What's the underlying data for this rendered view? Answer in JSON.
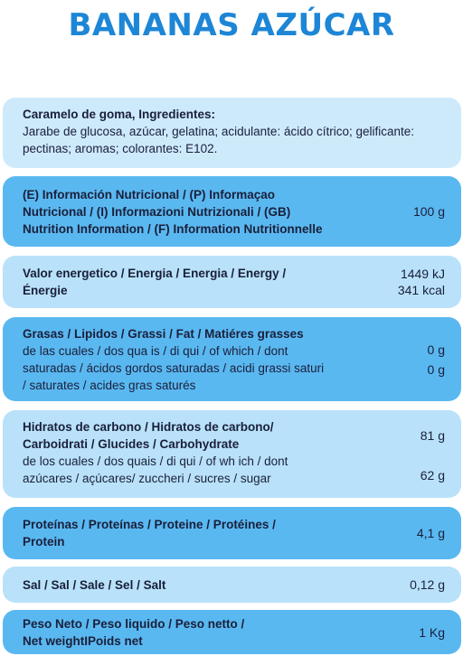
{
  "title": "BANANAS AZÚCAR",
  "ingredients": {
    "heading": "Caramelo de goma, Ingredientes:",
    "line1": "Jarabe de glucosa, azúcar, gelatina; acidulante: ácido cítrico; gelificante:",
    "line2": "pectinas; aromas; colorantes: E102."
  },
  "header": {
    "line1": "(E) Información Nutricional / (P) Informaçao",
    "line2": "Nutricional / (I) Informazioni Nutrizionali / (GB)",
    "line3": "Nutrition Information / (F) Information Nutritionnelle",
    "value": "100 g"
  },
  "energy": {
    "line1": "Valor energetico / Energia / Energia / Energy /",
    "line2": "Énergie",
    "value_kj": "1449 kJ",
    "value_kcal": "341 kcal"
  },
  "fat": {
    "line1": "Grasas / Lipidos / Grassi / Fat / Matiéres grasses",
    "line2": "de las cuales / dos qua is / di qui / of which / dont",
    "line3": "saturadas / ácidos gordos saturadas / acidi grassi saturi",
    "line4": "/ saturates / acides gras saturés",
    "value": "0 g",
    "value_sat": "0 g"
  },
  "carbs": {
    "line1": "Hidratos de carbono / Hidratos de carbono/",
    "line2": "Carboidrati / Glucides / Carbohydrate",
    "line3": "de los cuales / dos quais / di qui / of wh ich / dont",
    "line4": "azúcares / açúcares/ zuccheri / sucres / sugar",
    "value": "81 g",
    "value_sugar": "62 g"
  },
  "protein": {
    "line1": "Proteínas / Proteínas / Proteine / Protéines /",
    "line2": "Protein",
    "value": "4,1 g"
  },
  "salt": {
    "line1": "Sal / Sal / Sale / Sel / Salt",
    "value": "0,12 g"
  },
  "net_weight": {
    "line1": "Peso Neto / Peso liquido / Peso netto /",
    "line2": "Net weightIPoids net",
    "value": "1 Kg"
  }
}
